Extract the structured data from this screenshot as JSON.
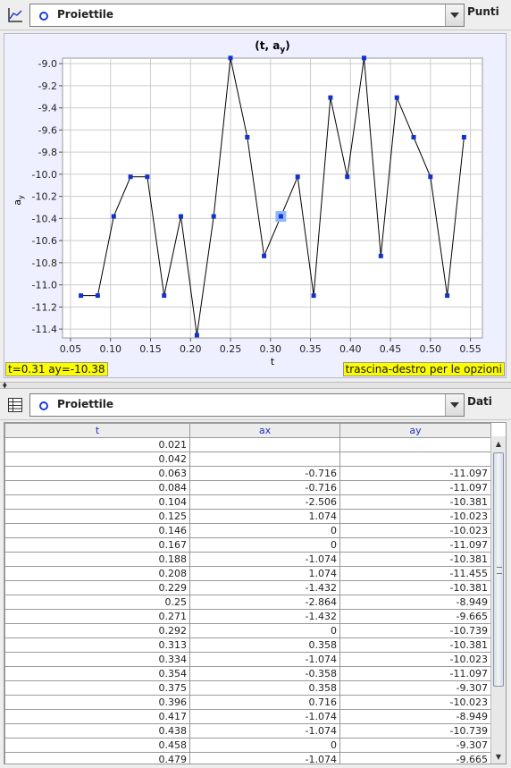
{
  "top_toolbar": {
    "object_name": "Proiettile",
    "mode_label": "Punti"
  },
  "readouts": {
    "coords": "t=0.31  ay=-10.38",
    "hint": "trascina-destro per le opzioni"
  },
  "chart_data": {
    "type": "line",
    "title": "(t, a",
    "title_sub": "y",
    "title_end": ")",
    "xlabel": "t",
    "ylabel": "a",
    "ylabel_sub": "y",
    "xlim": [
      0.04,
      0.565
    ],
    "ylim": [
      -11.48,
      -8.95
    ],
    "xticks": [
      0.05,
      0.1,
      0.15,
      0.2,
      0.25,
      0.3,
      0.35,
      0.4,
      0.45,
      0.5,
      0.55
    ],
    "xtick_labels": [
      "0.05",
      "0.10",
      "0.15",
      "0.20",
      "0.25",
      "0.30",
      "0.35",
      "0.40",
      "0.45",
      "0.50",
      "0.55"
    ],
    "yticks": [
      -9.0,
      -9.2,
      -9.4,
      -9.6,
      -9.8,
      -10.0,
      -10.2,
      -10.4,
      -10.6,
      -10.8,
      -11.0,
      -11.2,
      -11.4
    ],
    "ytick_labels": [
      "-9.0",
      "-9.2",
      "-9.4",
      "-9.6",
      "-9.8",
      "-10.0",
      "-10.2",
      "-10.4",
      "-10.6",
      "-10.8",
      "-11.0",
      "-11.2",
      "-11.4"
    ],
    "grid": true,
    "series": [
      {
        "x": [
          0.063,
          0.084,
          0.104,
          0.125,
          0.146,
          0.167,
          0.188,
          0.208,
          0.229,
          0.25,
          0.271,
          0.292,
          0.313,
          0.334,
          0.354,
          0.375,
          0.396,
          0.417,
          0.438,
          0.458,
          0.479,
          0.5,
          0.521,
          0.542
        ],
        "y": [
          -11.097,
          -11.097,
          -10.381,
          -10.023,
          -10.023,
          -11.097,
          -10.381,
          -11.455,
          -10.381,
          -8.949,
          -9.665,
          -10.739,
          -10.381,
          -10.023,
          -11.097,
          -9.307,
          -10.023,
          -8.949,
          -10.739,
          -9.307,
          -9.665,
          -10.023,
          -11.097,
          -9.665
        ],
        "color": "#000000",
        "marker_color": "#1133cc"
      }
    ],
    "highlight": {
      "x": 0.313,
      "y": -10.381,
      "color": "#8fb8ff"
    }
  },
  "bottom_toolbar": {
    "object_name": "Proiettile",
    "mode_label": "Dati"
  },
  "table": {
    "headers": [
      "t",
      "ax",
      "ay"
    ],
    "rows": [
      [
        "0.021",
        "",
        ""
      ],
      [
        "0.042",
        "",
        ""
      ],
      [
        "0.063",
        "-0.716",
        "-11.097"
      ],
      [
        "0.084",
        "-0.716",
        "-11.097"
      ],
      [
        "0.104",
        "-2.506",
        "-10.381"
      ],
      [
        "0.125",
        "1.074",
        "-10.023"
      ],
      [
        "0.146",
        "0",
        "-10.023"
      ],
      [
        "0.167",
        "0",
        "-11.097"
      ],
      [
        "0.188",
        "-1.074",
        "-10.381"
      ],
      [
        "0.208",
        "1.074",
        "-11.455"
      ],
      [
        "0.229",
        "-1.432",
        "-10.381"
      ],
      [
        "0.25",
        "-2.864",
        "-8.949"
      ],
      [
        "0.271",
        "-1.432",
        "-9.665"
      ],
      [
        "0.292",
        "0",
        "-10.739"
      ],
      [
        "0.313",
        "0.358",
        "-10.381"
      ],
      [
        "0.334",
        "-1.074",
        "-10.023"
      ],
      [
        "0.354",
        "-0.358",
        "-11.097"
      ],
      [
        "0.375",
        "0.358",
        "-9.307"
      ],
      [
        "0.396",
        "0.716",
        "-10.023"
      ],
      [
        "0.417",
        "-1.074",
        "-8.949"
      ],
      [
        "0.438",
        "-1.074",
        "-10.739"
      ],
      [
        "0.458",
        "0",
        "-9.307"
      ],
      [
        "0.479",
        "-1.074",
        "-9.665"
      ]
    ]
  }
}
